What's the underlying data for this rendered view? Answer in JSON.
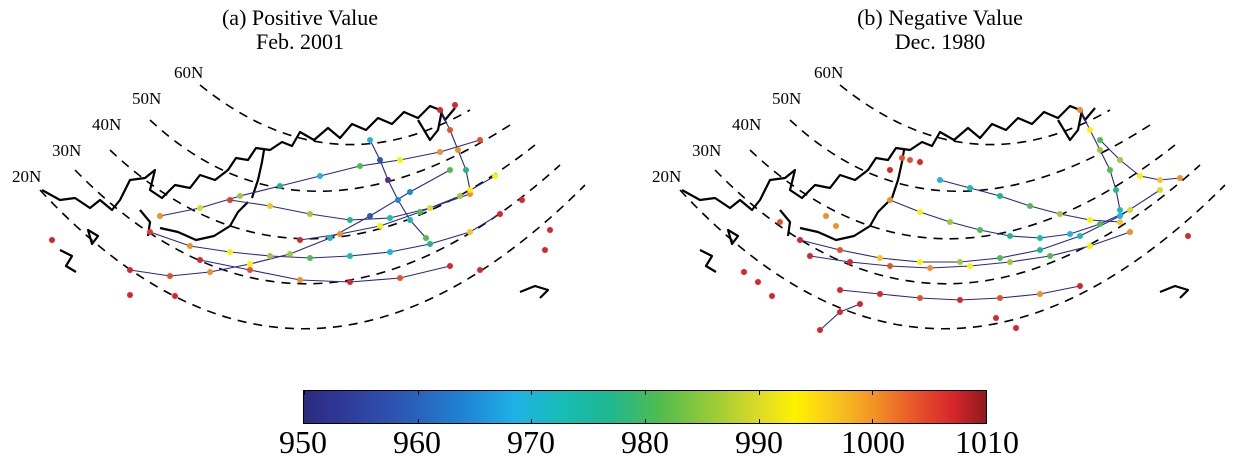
{
  "panel_a": {
    "title_line1": "(a) Positive Value",
    "title_line2": "Feb. 2001"
  },
  "panel_b": {
    "title_line1": "(b) Negative Value",
    "title_line2": "Dec. 1980"
  },
  "latitude_labels": [
    "20N",
    "30N",
    "40N",
    "50N",
    "60N"
  ],
  "colorbar": {
    "min": 950,
    "max": 1010,
    "tick_labels": [
      "950",
      "960",
      "970",
      "980",
      "990",
      "1000",
      "1010"
    ],
    "colormap": "jet"
  }
}
